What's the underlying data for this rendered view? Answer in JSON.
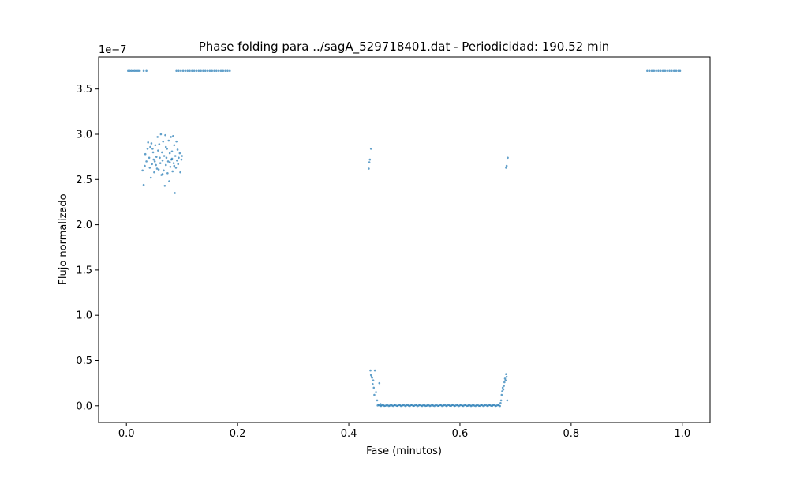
{
  "chart_data": {
    "type": "scatter",
    "title": "Phase folding para ../sagA_529718401.dat - Periodicidad: 190.52 min",
    "xlabel": "Fase (minutos)",
    "ylabel": "Flujo normalizado",
    "y_offset_label": "1e−7",
    "y_scale": 1e-07,
    "xlim": [
      -0.05,
      1.05
    ],
    "ylim": [
      -0.185,
      3.855
    ],
    "x_ticks": [
      0.0,
      0.2,
      0.4,
      0.6,
      0.8,
      1.0
    ],
    "x_tick_labels": [
      "0.0",
      "0.2",
      "0.4",
      "0.6",
      "0.8",
      "1.0"
    ],
    "y_ticks": [
      0.0,
      0.5,
      1.0,
      1.5,
      2.0,
      2.5,
      3.0,
      3.5
    ],
    "y_tick_labels": [
      "0.0",
      "0.5",
      "1.0",
      "1.5",
      "2.0",
      "2.5",
      "3.0",
      "3.5"
    ],
    "grid": false,
    "legend": "none",
    "marker_color": "#1f77b4",
    "marker_alpha": 0.7,
    "series": [
      {
        "points": [
          [
            0.003,
            3.7
          ],
          [
            0.006,
            3.7
          ],
          [
            0.009,
            3.7
          ],
          [
            0.012,
            3.7
          ],
          [
            0.015,
            3.7
          ],
          [
            0.018,
            3.7
          ],
          [
            0.021,
            3.7
          ],
          [
            0.024,
            3.7
          ],
          [
            0.031,
            3.7
          ],
          [
            0.036,
            3.7
          ],
          [
            0.09,
            3.7
          ],
          [
            0.094,
            3.7
          ],
          [
            0.098,
            3.7
          ],
          [
            0.102,
            3.7
          ],
          [
            0.106,
            3.7
          ],
          [
            0.11,
            3.7
          ],
          [
            0.114,
            3.7
          ],
          [
            0.118,
            3.7
          ],
          [
            0.122,
            3.7
          ],
          [
            0.126,
            3.7
          ],
          [
            0.13,
            3.7
          ],
          [
            0.134,
            3.7
          ],
          [
            0.138,
            3.7
          ],
          [
            0.142,
            3.7
          ],
          [
            0.146,
            3.7
          ],
          [
            0.15,
            3.7
          ],
          [
            0.154,
            3.7
          ],
          [
            0.158,
            3.7
          ],
          [
            0.162,
            3.7
          ],
          [
            0.166,
            3.7
          ],
          [
            0.17,
            3.7
          ],
          [
            0.174,
            3.7
          ],
          [
            0.178,
            3.7
          ],
          [
            0.182,
            3.7
          ],
          [
            0.186,
            3.7
          ],
          [
            0.937,
            3.7
          ],
          [
            0.941,
            3.7
          ],
          [
            0.945,
            3.7
          ],
          [
            0.949,
            3.7
          ],
          [
            0.953,
            3.7
          ],
          [
            0.957,
            3.7
          ],
          [
            0.961,
            3.7
          ],
          [
            0.965,
            3.7
          ],
          [
            0.969,
            3.7
          ],
          [
            0.973,
            3.7
          ],
          [
            0.977,
            3.7
          ],
          [
            0.981,
            3.7
          ],
          [
            0.985,
            3.7
          ],
          [
            0.989,
            3.7
          ],
          [
            0.993,
            3.7
          ],
          [
            0.996,
            3.7
          ],
          [
            0.029,
            2.6
          ],
          [
            0.031,
            2.44
          ],
          [
            0.033,
            2.65
          ],
          [
            0.034,
            2.78
          ],
          [
            0.036,
            2.7
          ],
          [
            0.038,
            2.84
          ],
          [
            0.039,
            2.91
          ],
          [
            0.041,
            2.74
          ],
          [
            0.042,
            2.63
          ],
          [
            0.043,
            2.86
          ],
          [
            0.045,
            2.9
          ],
          [
            0.046,
            2.67
          ],
          [
            0.048,
            2.8
          ],
          [
            0.049,
            2.72
          ],
          [
            0.05,
            2.58
          ],
          [
            0.052,
            2.88
          ],
          [
            0.053,
            2.66
          ],
          [
            0.054,
            2.75
          ],
          [
            0.056,
            2.97
          ],
          [
            0.057,
            2.82
          ],
          [
            0.058,
            2.61
          ],
          [
            0.06,
            2.74
          ],
          [
            0.061,
            2.68
          ],
          [
            0.062,
            3.0
          ],
          [
            0.063,
            2.55
          ],
          [
            0.064,
            2.8
          ],
          [
            0.065,
            2.71
          ],
          [
            0.066,
            2.92
          ],
          [
            0.067,
            2.6
          ],
          [
            0.068,
            2.76
          ],
          [
            0.069,
            2.43
          ],
          [
            0.07,
            2.99
          ],
          [
            0.071,
            2.66
          ],
          [
            0.072,
            2.74
          ],
          [
            0.073,
            2.84
          ],
          [
            0.074,
            2.57
          ],
          [
            0.075,
            2.7
          ],
          [
            0.076,
            2.93
          ],
          [
            0.077,
            2.48
          ],
          [
            0.078,
            2.79
          ],
          [
            0.079,
            2.64
          ],
          [
            0.08,
            2.97
          ],
          [
            0.081,
            2.72
          ],
          [
            0.082,
            2.81
          ],
          [
            0.083,
            2.59
          ],
          [
            0.084,
            2.98
          ],
          [
            0.085,
            2.68
          ],
          [
            0.086,
            2.88
          ],
          [
            0.087,
            2.35
          ],
          [
            0.088,
            2.76
          ],
          [
            0.089,
            2.63
          ],
          [
            0.09,
            2.92
          ],
          [
            0.091,
            2.71
          ],
          [
            0.092,
            2.83
          ],
          [
            0.093,
            2.67
          ],
          [
            0.094,
            2.74
          ],
          [
            0.096,
            2.79
          ],
          [
            0.097,
            2.58
          ],
          [
            0.099,
            2.72
          ],
          [
            0.1,
            2.76
          ],
          [
            0.044,
            2.52
          ],
          [
            0.047,
            2.84
          ],
          [
            0.055,
            2.62
          ],
          [
            0.059,
            2.89
          ],
          [
            0.065,
            2.56
          ],
          [
            0.071,
            2.86
          ],
          [
            0.078,
            2.69
          ],
          [
            0.082,
            2.73
          ],
          [
            0.086,
            2.65
          ],
          [
            0.051,
            2.7
          ],
          [
            0.436,
            2.62
          ],
          [
            0.437,
            2.69
          ],
          [
            0.438,
            2.72
          ],
          [
            0.44,
            2.84
          ],
          [
            0.683,
            2.63
          ],
          [
            0.684,
            2.65
          ],
          [
            0.686,
            2.74
          ],
          [
            0.439,
            0.39
          ],
          [
            0.44,
            0.34
          ],
          [
            0.441,
            0.32
          ],
          [
            0.442,
            0.31
          ],
          [
            0.443,
            0.24
          ],
          [
            0.444,
            0.28
          ],
          [
            0.445,
            0.2
          ],
          [
            0.446,
            0.12
          ],
          [
            0.447,
            0.39
          ],
          [
            0.449,
            0.15
          ],
          [
            0.451,
            0.06
          ],
          [
            0.455,
            0.25
          ],
          [
            0.457,
            0.02
          ],
          [
            0.675,
            0.12
          ],
          [
            0.676,
            0.16
          ],
          [
            0.677,
            0.2
          ],
          [
            0.678,
            0.18
          ],
          [
            0.679,
            0.22
          ],
          [
            0.68,
            0.26
          ],
          [
            0.681,
            0.3
          ],
          [
            0.682,
            0.28
          ],
          [
            0.683,
            0.35
          ],
          [
            0.684,
            0.32
          ],
          [
            0.685,
            0.06
          ],
          [
            0.673,
            0.03
          ],
          [
            0.674,
            0.06
          ]
        ]
      },
      {
        "band": {
          "x_start": 0.452,
          "x_end": 0.672,
          "step": 0.002,
          "y_base": 0.004,
          "y_jitter": 0.006
        }
      }
    ]
  }
}
